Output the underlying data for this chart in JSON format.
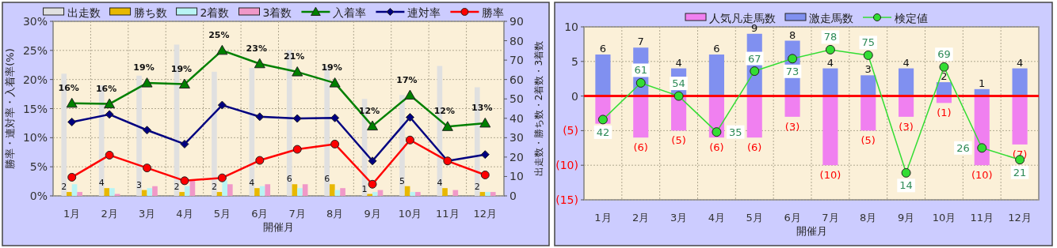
{
  "chart_data": [
    {
      "type": "bar",
      "categories": [
        "1月",
        "2月",
        "3月",
        "4月",
        "5月",
        "6月",
        "7月",
        "8月",
        "9月",
        "10月",
        "11月",
        "12月"
      ],
      "xlabel": "開催月",
      "ylabel": "勝率・連対率・入着率(%)",
      "y2label": "出走数・勝ち数・2着数・3着数",
      "ylim": [
        0,
        30
      ],
      "yticks": [
        {
          "value": 0,
          "label": "0%"
        },
        {
          "value": 5,
          "label": "5%"
        },
        {
          "value": 10,
          "label": "10%"
        },
        {
          "value": 15,
          "label": "15%"
        },
        {
          "value": 20,
          "label": "20%"
        },
        {
          "value": 25,
          "label": "25%"
        },
        {
          "value": 30,
          "label": "30%"
        }
      ],
      "y2lim": [
        0,
        90
      ],
      "y2ticks": [
        0,
        10,
        20,
        30,
        40,
        50,
        60,
        70,
        80,
        90
      ],
      "grid": true,
      "legend": "top",
      "series": [
        {
          "name": "出走数",
          "type": "bar",
          "axis": "y2",
          "color": "#e0e0e0",
          "values": [
            63,
            57,
            62,
            78,
            64,
            66,
            75,
            67,
            50,
            52,
            67,
            56
          ]
        },
        {
          "name": "勝ち数",
          "type": "bar",
          "axis": "y2",
          "color": "#e8b800",
          "values": [
            2,
            4,
            3,
            2,
            2,
            4,
            6,
            6,
            1,
            5,
            4,
            2
          ],
          "value_labels": [
            "2",
            "4",
            "3",
            "2",
            "2",
            "4",
            "6",
            "6",
            "1",
            "5",
            "4",
            "2"
          ]
        },
        {
          "name": "2着数",
          "type": "bar",
          "axis": "y2",
          "color": "#b8f4f4",
          "values": [
            6,
            4,
            4,
            5,
            8,
            5,
            4,
            3,
            2,
            2,
            0,
            2
          ]
        },
        {
          "name": "3着数",
          "type": "bar",
          "axis": "y2",
          "color": "#f098c8",
          "values": [
            2,
            1,
            5,
            8,
            6,
            6,
            6,
            4,
            3,
            2,
            3,
            2
          ]
        },
        {
          "name": "入着率",
          "type": "line",
          "color": "#008000",
          "marker": "triangle",
          "values": [
            15.9,
            15.8,
            19.4,
            19.2,
            25.0,
            22.7,
            21.3,
            19.4,
            12.0,
            17.3,
            11.9,
            12.5
          ],
          "value_labels": [
            "16%",
            "16%",
            "19%",
            "19%",
            "25%",
            "23%",
            "21%",
            "19%",
            "12%",
            "17%",
            "12%",
            "13%"
          ]
        },
        {
          "name": "連対率",
          "type": "line",
          "color": "#000080",
          "marker": "diamond",
          "values": [
            12.7,
            14.0,
            11.3,
            8.9,
            15.6,
            13.6,
            13.3,
            13.4,
            6.0,
            13.5,
            6.0,
            7.1
          ]
        },
        {
          "name": "勝率",
          "type": "line",
          "color": "#ff0000",
          "marker": "circle",
          "values": [
            3.2,
            7.0,
            4.8,
            2.6,
            3.1,
            6.1,
            8.0,
            8.9,
            2.0,
            9.6,
            6.0,
            3.6
          ]
        }
      ]
    },
    {
      "type": "bar",
      "stacked": true,
      "categories": [
        "1月",
        "2月",
        "3月",
        "4月",
        "5月",
        "6月",
        "7月",
        "8月",
        "9月",
        "10月",
        "11月",
        "12月"
      ],
      "xlabel": "開催月",
      "ylim": [
        -15,
        10
      ],
      "yticks": [
        {
          "value": -15,
          "label": "(15)"
        },
        {
          "value": -10,
          "label": "(10)"
        },
        {
          "value": -5,
          "label": "(5)"
        },
        0,
        5,
        10
      ],
      "grid": true,
      "legend": "top",
      "ref_lines": [
        {
          "axis": "y",
          "value": 0,
          "color": "#ff0000"
        }
      ],
      "series": [
        {
          "name": "人気凡走馬数",
          "type": "bar",
          "color": "#f080f0",
          "values": [
            -4,
            -6,
            -5,
            -6,
            -6,
            -3,
            -10,
            -5,
            -3,
            -1,
            -10,
            -7
          ],
          "value_labels": [
            null,
            "(6)",
            "(5)",
            "(6)",
            "(6)",
            "(3)",
            "(10)",
            "(5)",
            "(3)",
            "(1)",
            "(10)",
            "(7)"
          ]
        },
        {
          "name": "激走馬数",
          "type": "bar",
          "color": "#8090f0",
          "values": [
            6,
            7,
            4,
            6,
            9,
            8,
            4,
            3,
            4,
            2,
            1,
            4
          ],
          "value_labels": [
            "6",
            "7",
            "4",
            "6",
            "9",
            "8",
            "4",
            "3",
            "4",
            "2",
            "1",
            "4"
          ]
        },
        {
          "name": "検定値",
          "type": "line",
          "color": "#33dd33",
          "marker": "circle",
          "values": [
            -3.4,
            1.9,
            0,
            -5.2,
            3.6,
            5.4,
            6.7,
            5.9,
            -11.1,
            4.2,
            -7.5,
            -9.2
          ]
        }
      ],
      "annotations": [
        {
          "text": "42",
          "x": "1月",
          "y": -3.4
        },
        {
          "text": "61",
          "x": "2月",
          "y": 1.9
        },
        {
          "text": "54",
          "x": "3月",
          "y": 0
        },
        {
          "text": "35",
          "x": "4月",
          "y": -5.2
        },
        {
          "text": "67",
          "x": "5月",
          "y": 3.6
        },
        {
          "text": "73",
          "x": "6月",
          "y": 5.4
        },
        {
          "text": "78",
          "x": "7月",
          "y": 6.7
        },
        {
          "text": "75",
          "x": "8月",
          "y": 5.9
        },
        {
          "text": "14",
          "x": "9月",
          "y": -11.1
        },
        {
          "text": "69",
          "x": "10月",
          "y": 4.2
        },
        {
          "text": "26",
          "x": "11月",
          "y": -7.5
        },
        {
          "text": "21",
          "x": "12月",
          "y": -9.2
        }
      ]
    }
  ]
}
